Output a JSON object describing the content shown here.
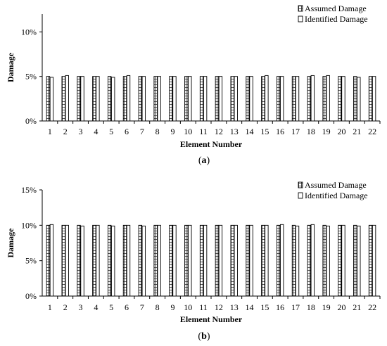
{
  "chart_data": [
    {
      "type": "bar",
      "xlabel": "Element Number",
      "ylabel": "Damage",
      "caption_open": "(",
      "caption_letter": "a",
      "caption_close": ")",
      "ylim": [
        0,
        0.12
      ],
      "yticks": [
        "0%",
        "5%",
        "10%"
      ],
      "categories": [
        "1",
        "2",
        "3",
        "4",
        "5",
        "6",
        "7",
        "8",
        "9",
        "10",
        "11",
        "12",
        "13",
        "14",
        "15",
        "16",
        "17",
        "18",
        "19",
        "20",
        "21",
        "22"
      ],
      "series": [
        {
          "name": "Assumed Damage",
          "pattern": "grid",
          "values": [
            0.05,
            0.05,
            0.05,
            0.05,
            0.05,
            0.05,
            0.05,
            0.05,
            0.05,
            0.05,
            0.05,
            0.05,
            0.05,
            0.05,
            0.05,
            0.05,
            0.05,
            0.05,
            0.05,
            0.05,
            0.05,
            0.05
          ]
        },
        {
          "name": "Identified Damage",
          "pattern": "hollow",
          "values": [
            0.049,
            0.051,
            0.05,
            0.05,
            0.049,
            0.051,
            0.05,
            0.05,
            0.05,
            0.05,
            0.05,
            0.05,
            0.05,
            0.05,
            0.051,
            0.05,
            0.05,
            0.051,
            0.051,
            0.05,
            0.049,
            0.05
          ]
        }
      ],
      "legend": "top-right"
    },
    {
      "type": "bar",
      "xlabel": "Element Number",
      "ylabel": "Damage",
      "caption_open": "(",
      "caption_letter": "b",
      "caption_close": ")",
      "ylim": [
        0,
        0.15
      ],
      "yticks": [
        "0%",
        "5%",
        "10%",
        "15%"
      ],
      "categories": [
        "1",
        "2",
        "3",
        "4",
        "5",
        "6",
        "7",
        "8",
        "9",
        "10",
        "11",
        "12",
        "13",
        "14",
        "15",
        "16",
        "17",
        "18",
        "19",
        "20",
        "21",
        "22"
      ],
      "series": [
        {
          "name": "Assumed Damage",
          "pattern": "grid",
          "values": [
            0.1,
            0.1,
            0.1,
            0.1,
            0.1,
            0.1,
            0.1,
            0.1,
            0.1,
            0.1,
            0.1,
            0.1,
            0.1,
            0.1,
            0.1,
            0.1,
            0.1,
            0.1,
            0.1,
            0.1,
            0.1,
            0.1
          ]
        },
        {
          "name": "Identified Damage",
          "pattern": "hollow",
          "values": [
            0.101,
            0.1,
            0.099,
            0.1,
            0.099,
            0.1,
            0.099,
            0.1,
            0.1,
            0.1,
            0.1,
            0.1,
            0.1,
            0.1,
            0.1,
            0.101,
            0.099,
            0.101,
            0.099,
            0.1,
            0.099,
            0.1
          ]
        }
      ],
      "legend": "top-right"
    }
  ]
}
